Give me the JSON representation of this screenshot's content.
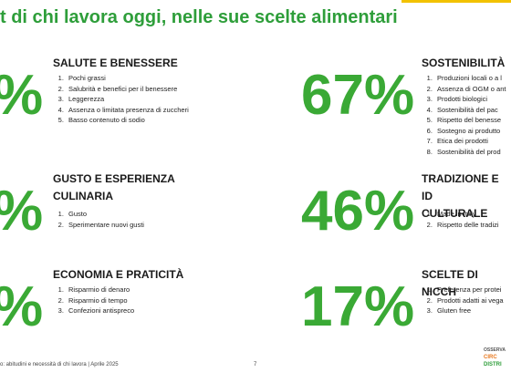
{
  "header": {
    "title": "t di chi lavora oggi, nelle sue scelte alimentari"
  },
  "left": [
    {
      "percent": "%",
      "title": "SALUTE E BENESSERE",
      "items": [
        "Pochi grassi",
        "Salubrità e benefici per il benessere",
        "Leggerezza",
        "Assenza o limitata presenza di zuccheri",
        "Basso contenuto di sodio"
      ]
    },
    {
      "percent": "%",
      "title": "GUSTO E ESPERIENZA\nCULINARIA",
      "items": [
        "Gusto",
        "Sperimentare nuovi gusti"
      ]
    },
    {
      "percent": "%",
      "title": "ECONOMIA E PRATICITÀ",
      "items": [
        "Risparmio di denaro",
        "Risparmio di tempo",
        "Confezioni antispreco"
      ]
    }
  ],
  "right": [
    {
      "percent": "67%",
      "title": "SOSTENIBILITÀ",
      "items": [
        "Produzioni locali o a l",
        "Assenza di OGM o ant",
        "Prodotti biologici",
        "Sostenibilità del pac",
        "Rispetto del benesse",
        "Sostegno ai produtto",
        "Etica dei prodotti",
        "Sostenibilità del prod"
      ]
    },
    {
      "percent": "46%",
      "title": "TRADIZIONE E ID\nCULTURALE",
      "items": [
        "Made in Italy",
        "Rispetto delle tradizi"
      ]
    },
    {
      "percent": "17%",
      "title": "SCELTE DI NICCH",
      "items": [
        "Preferenza per protei",
        "Prodotti adatti ai vega",
        "Gluten free"
      ]
    }
  ],
  "footer": {
    "source": "o: abitudini e necessità di chi lavora | Aprile 2025",
    "page": "7",
    "logo": [
      "OSSERVA",
      "CIRC",
      "DISTRI"
    ]
  }
}
